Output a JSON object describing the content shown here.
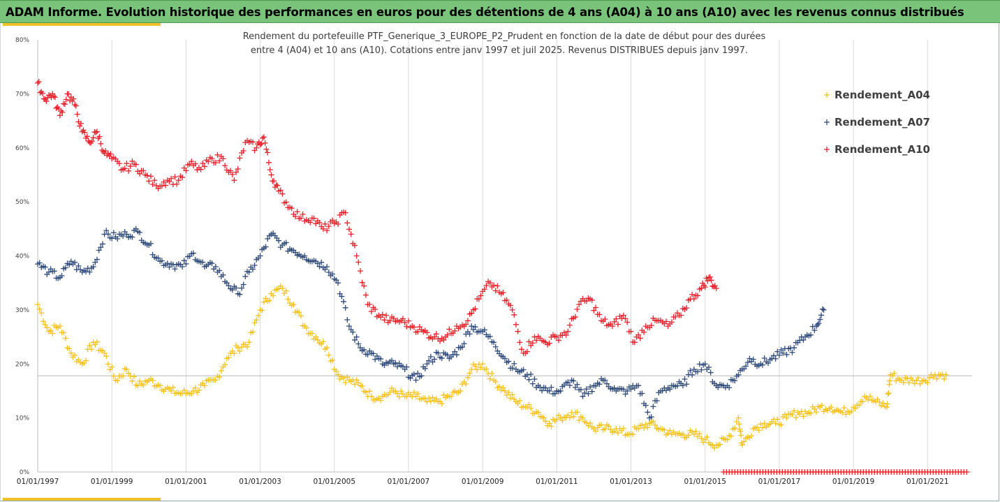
{
  "header": {
    "title": "ADAM Informe. Evolution historique des performances en euros pour des détentions de 4 ans (A04) à 10 ans (A10) avec les revenus connus distribués"
  },
  "colors": {
    "header_bg": "#79c37a",
    "accent": "#f0c02a",
    "A04": "#f5c21b",
    "A07": "#2e4a7a",
    "A10": "#e8202a",
    "grid": "#d9d9d9"
  },
  "chart_data": {
    "type": "scatter",
    "title_lines": [
      "Rendement du portefeuille PTF_Generique_3_EUROPE_P2_Prudent  en fonction de la date de début pour des durées",
      "entre 4 (A04) et 10 ans (A10). Cotations entre janv 1997 et juil 2025. Revenus DISTRIBUES depuis janv 1997."
    ],
    "ylim": [
      0,
      80
    ],
    "y_ticks": [
      "0%",
      "10%",
      "20%",
      "30%",
      "40%",
      "50%",
      "60%",
      "70%",
      "80%"
    ],
    "x_range": [
      1997.0,
      2022.2
    ],
    "x_ticks": [
      "01/01/1997",
      "01/01/1999",
      "01/01/2001",
      "01/01/2003",
      "01/01/2005",
      "01/01/2007",
      "01/01/2009",
      "01/01/2011",
      "01/01/2013",
      "01/01/2015",
      "01/01/2017",
      "01/01/2019",
      "01/01/2021"
    ],
    "grid": "vertical",
    "reference_line_y": 17.8,
    "legend_position": "right",
    "series": [
      {
        "name": "Rendement_A04",
        "key": "A04",
        "x": [
          1997.0,
          1997.3,
          1997.6,
          1997.9,
          1998.2,
          1998.5,
          1998.8,
          1999.1,
          1999.4,
          1999.7,
          2000.0,
          2000.3,
          2000.6,
          2000.9,
          2001.2,
          2001.5,
          2001.8,
          2002.1,
          2002.4,
          2002.7,
          2003.0,
          2003.3,
          2003.6,
          2003.9,
          2004.2,
          2004.5,
          2004.8,
          2005.1,
          2005.4,
          2005.7,
          2006.0,
          2006.3,
          2006.6,
          2006.9,
          2007.2,
          2007.5,
          2007.8,
          2008.1,
          2008.4,
          2008.7,
          2009.0,
          2009.3,
          2009.6,
          2009.9,
          2010.2,
          2010.5,
          2010.8,
          2011.1,
          2011.4,
          2011.7,
          2012.0,
          2012.3,
          2012.6,
          2012.9,
          2013.2,
          2013.5,
          2013.8,
          2014.1,
          2014.4,
          2014.7,
          2015.0,
          2015.3,
          2015.6,
          2015.9,
          2016.0,
          2016.3,
          2016.6,
          2016.9,
          2017.2,
          2017.5,
          2017.8,
          2018.1,
          2018.4,
          2018.7,
          2019.0,
          2019.3,
          2019.6,
          2019.9,
          2020.0,
          2020.3,
          2020.6,
          2020.9,
          2021.2,
          2021.5
        ],
        "y": [
          31,
          26,
          27,
          22,
          20,
          24,
          22,
          17,
          19,
          16,
          17,
          16,
          15,
          14.5,
          15,
          16,
          17,
          21,
          23,
          24,
          30,
          33,
          34,
          31,
          27,
          25,
          23,
          18,
          17,
          16,
          14,
          14,
          15,
          14,
          14,
          13,
          13,
          14,
          15,
          19,
          20,
          17,
          15,
          13,
          12,
          11,
          9,
          10,
          11,
          10,
          8,
          8,
          8,
          7,
          8,
          9,
          8,
          7,
          7,
          7,
          6,
          5,
          6,
          10,
          5,
          8,
          9,
          9,
          10,
          11,
          11,
          12,
          12,
          11,
          12,
          14,
          13,
          12,
          18,
          17,
          17,
          17,
          18,
          18
        ]
      },
      {
        "name": "Rendement_A07",
        "key": "A07",
        "x": [
          1997.0,
          1997.3,
          1997.6,
          1997.9,
          1998.2,
          1998.5,
          1998.8,
          1999.1,
          1999.4,
          1999.7,
          2000.0,
          2000.3,
          2000.6,
          2000.9,
          2001.2,
          2001.5,
          2001.8,
          2002.1,
          2002.4,
          2002.7,
          2003.0,
          2003.3,
          2003.6,
          2003.9,
          2004.2,
          2004.5,
          2004.8,
          2005.1,
          2005.4,
          2005.7,
          2006.0,
          2006.3,
          2006.6,
          2006.9,
          2007.2,
          2007.5,
          2007.8,
          2008.1,
          2008.4,
          2008.7,
          2009.0,
          2009.3,
          2009.6,
          2009.9,
          2010.2,
          2010.5,
          2010.8,
          2011.1,
          2011.4,
          2011.7,
          2012.0,
          2012.3,
          2012.6,
          2012.9,
          2013.2,
          2013.5,
          2013.8,
          2014.1,
          2014.4,
          2014.7,
          2015.0,
          2015.3,
          2015.6,
          2015.9,
          2016.2,
          2016.5,
          2016.8,
          2017.1,
          2017.4,
          2017.7,
          2018.0,
          2018.2
        ],
        "y": [
          38.5,
          37,
          36,
          39,
          37,
          38,
          44,
          43.5,
          44,
          44.5,
          42,
          39,
          38.5,
          38,
          40.5,
          38,
          38,
          35,
          33,
          37,
          40,
          44,
          42,
          41,
          40,
          39,
          38,
          35,
          27,
          23,
          22,
          20,
          20,
          19,
          17,
          20,
          22,
          21,
          23,
          27,
          26,
          24,
          21,
          19,
          18,
          16,
          15,
          15,
          17,
          14,
          16,
          17,
          15,
          15,
          16,
          10,
          15,
          16,
          16,
          19,
          20,
          16,
          16,
          18,
          21,
          20,
          21,
          22,
          23,
          25,
          27,
          30
        ]
      },
      {
        "name": "Rendement_A10",
        "key": "A10",
        "x": [
          1997.0,
          1997.2,
          1997.4,
          1997.6,
          1997.8,
          1998.0,
          1998.2,
          1998.4,
          1998.6,
          1998.8,
          1999.0,
          1999.3,
          1999.6,
          1999.9,
          2000.2,
          2000.5,
          2000.8,
          2001.1,
          2001.4,
          2001.7,
          2002.0,
          2002.3,
          2002.6,
          2002.9,
          2003.1,
          2003.3,
          2003.5,
          2003.8,
          2004.1,
          2004.4,
          2004.7,
          2005.0,
          2005.3,
          2005.6,
          2005.9,
          2006.2,
          2006.5,
          2006.8,
          2007.1,
          2007.4,
          2007.7,
          2008.0,
          2008.3,
          2008.6,
          2008.9,
          2009.2,
          2009.5,
          2009.8,
          2010.1,
          2010.4,
          2010.7,
          2011.0,
          2011.3,
          2011.6,
          2011.9,
          2012.2,
          2012.5,
          2012.8,
          2013.1,
          2013.4,
          2013.7,
          2014.0,
          2014.3,
          2014.6,
          2014.9,
          2015.1,
          2015.3
        ],
        "y": [
          72,
          69,
          70,
          66,
          70,
          68,
          63,
          61,
          63,
          59,
          58,
          56,
          57,
          55,
          53,
          54,
          54,
          57,
          56,
          58,
          58,
          54,
          61,
          60,
          62,
          55,
          52,
          49,
          47,
          47,
          45,
          46,
          48,
          40,
          31,
          29,
          28,
          28,
          27,
          26,
          25,
          25,
          27,
          28,
          32,
          35,
          33,
          30,
          22,
          25,
          24,
          25,
          26,
          31,
          32,
          28,
          27,
          29,
          24,
          27,
          28,
          27,
          29,
          32,
          34,
          36,
          34
        ]
      },
      {
        "name": "",
        "key": "zero",
        "x_from": 2015.5,
        "x_to": 2022.1,
        "y": 0
      }
    ]
  }
}
